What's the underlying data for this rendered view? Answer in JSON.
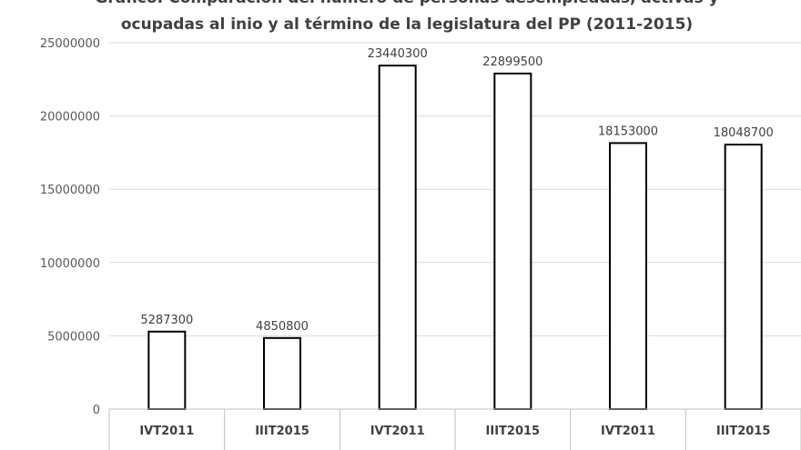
{
  "chart_data": {
    "type": "bar",
    "title_lines": [
      "Gráfico: Comparación del número de personas desempleadas, activas y",
      "ocupadas al inio y al término de la legislatura del PP (2011-2015)"
    ],
    "categories": [
      "IVT2011",
      "IIIT2015",
      "IVT2011",
      "IIIT2015",
      "IVT2011",
      "IIIT2015"
    ],
    "values": [
      5287300,
      4850800,
      23440300,
      22899500,
      18153000,
      18048700
    ],
    "data_labels": [
      "5287300",
      "4850800",
      "23440300",
      "22899500",
      "18153000",
      "18048700"
    ],
    "y_ticks": [
      "0",
      "5000000",
      "10000000",
      "15000000",
      "20000000",
      "25000000"
    ],
    "ylim": [
      0,
      25000000
    ],
    "grid": true,
    "legend": "none",
    "colors": {
      "bar_fill": "#ffffff",
      "bar_stroke": "#000000",
      "grid": "#d9d9d9",
      "axis": "#bfbfbf"
    }
  }
}
